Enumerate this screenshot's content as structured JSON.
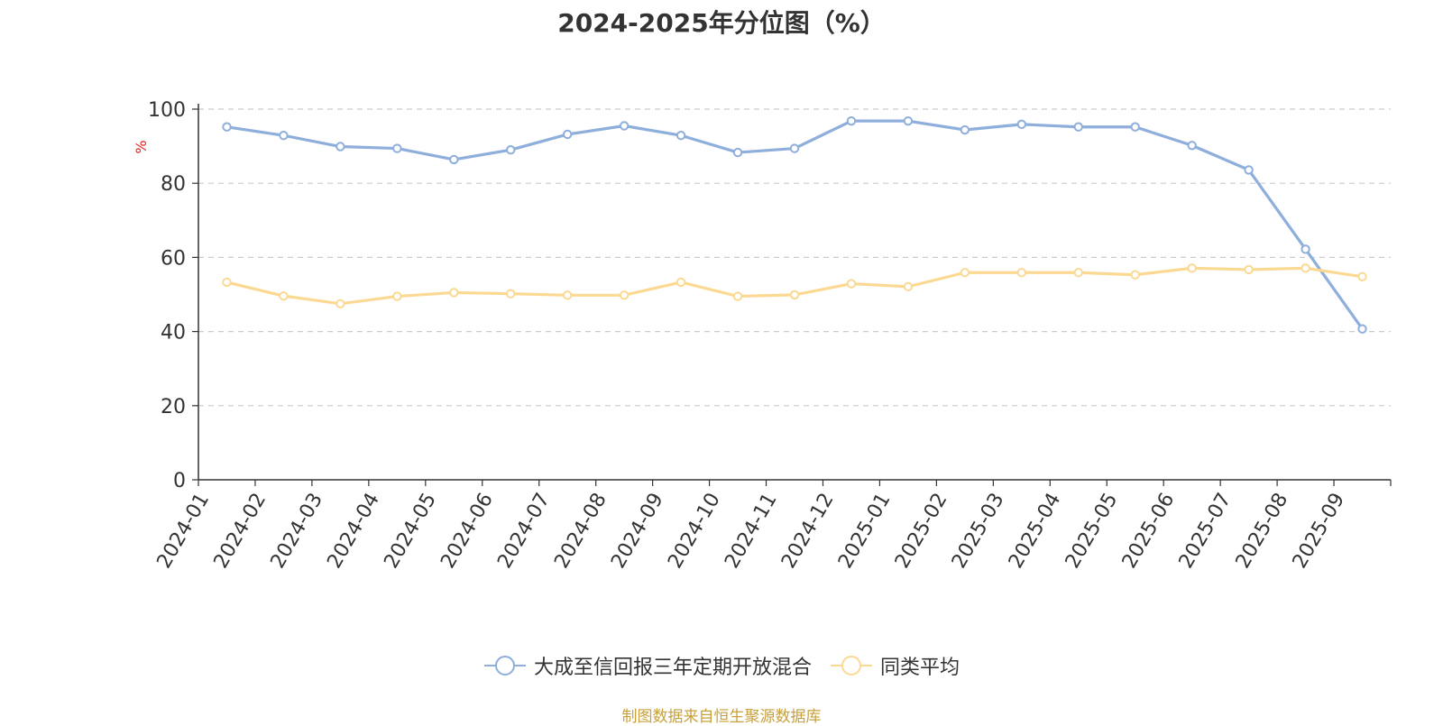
{
  "chart_data": {
    "type": "line",
    "title": "2024-2025年分位图（%）",
    "ylabel": "%",
    "xlabel": "",
    "ylim": [
      0,
      100
    ],
    "yticks": [
      0,
      20,
      40,
      60,
      80,
      100
    ],
    "grid": true,
    "legend_position": "bottom",
    "categories": [
      "2024-01",
      "2024-02",
      "2024-03",
      "2024-04",
      "2024-05",
      "2024-06",
      "2024-07",
      "2024-08",
      "2024-09",
      "2024-10",
      "2024-11",
      "2024-12",
      "2025-01",
      "2025-02",
      "2025-03",
      "2025-04",
      "2025-05",
      "2025-06",
      "2025-07",
      "2025-08",
      "2025-09"
    ],
    "series": [
      {
        "name": "大成至信回报三年定期开放混合",
        "color": "#8eaedb",
        "values": [
          95.2,
          92.9,
          89.9,
          89.4,
          86.4,
          89.0,
          93.2,
          95.5,
          92.9,
          88.3,
          89.4,
          96.8,
          96.8,
          94.4,
          95.9,
          95.2,
          95.2,
          90.2,
          83.6,
          62.2,
          40.7
        ]
      },
      {
        "name": "同类平均",
        "color": "#fbd993",
        "values": [
          53.3,
          49.6,
          47.5,
          49.5,
          50.5,
          50.2,
          49.8,
          49.8,
          53.3,
          49.5,
          49.9,
          52.9,
          52.1,
          55.9,
          55.9,
          55.9,
          55.3,
          57.1,
          56.7,
          57.1,
          54.8
        ]
      }
    ]
  },
  "source_text": "制图数据来自恒生聚源数据库"
}
